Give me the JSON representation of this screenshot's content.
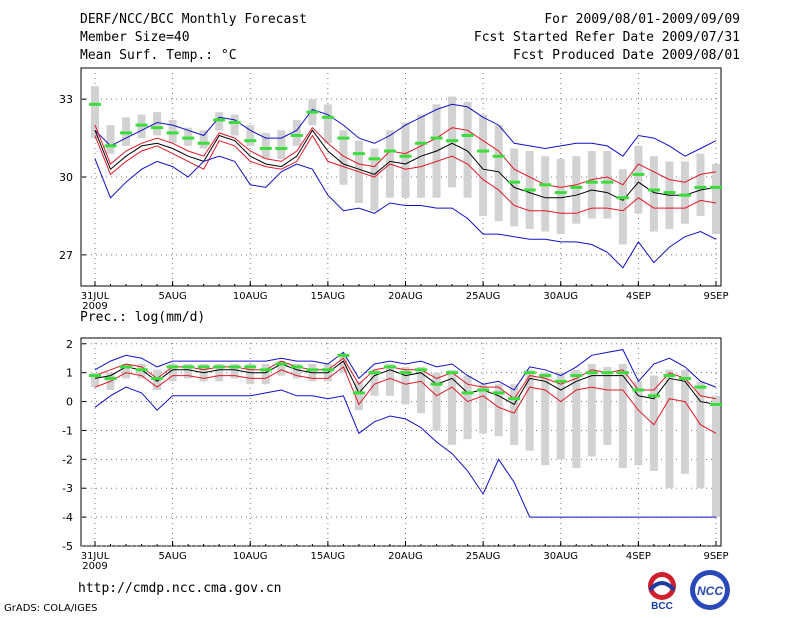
{
  "header": {
    "title": "DERF/NCC/BCC Monthly Forecast",
    "member_size": "Member Size=40",
    "variable": "Mean Surf. Temp.: °C",
    "period": "For 2009/08/01-2009/09/09",
    "started": "Fcst Started Refer Date 2009/07/31",
    "produced": "Fcst Produced Date 2009/08/01"
  },
  "footer": {
    "url": "http://cmdp.ncc.cma.gov.cn",
    "grads": "GrADS: COLA/IGES",
    "logo_bcc": "BCC",
    "logo_ncc": "NCC"
  },
  "chart_data": [
    {
      "type": "line",
      "title": "Mean Surf. Temp.: °C",
      "x_tick_labels": [
        "31JUL\n2009",
        "5AUG",
        "10AUG",
        "15AUG",
        "20AUG",
        "25AUG",
        "30AUG",
        "4SEP",
        "9SEP"
      ],
      "x_tick_days": [
        0,
        5,
        10,
        15,
        20,
        25,
        30,
        35,
        40
      ],
      "ylim": [
        25.8,
        34.2
      ],
      "yticks": [
        27,
        30,
        33
      ],
      "colors": {
        "max_min": "#1010c8",
        "spread": "#e01828",
        "mean": "#000000",
        "member_box": "#d2d2d2",
        "observed_tick": "#3cdc3c"
      },
      "series": [
        {
          "name": "max",
          "values": [
            31.8,
            31.2,
            31.5,
            31.8,
            32.1,
            32.0,
            31.8,
            31.6,
            32.3,
            32.2,
            31.8,
            31.5,
            31.5,
            31.8,
            32.6,
            32.4,
            32.0,
            31.5,
            31.3,
            31.6,
            32.0,
            32.3,
            32.6,
            32.8,
            32.7,
            32.3,
            32.0,
            31.3,
            31.2,
            31.1,
            31.2,
            31.3,
            31.3,
            31.2,
            30.8,
            31.6,
            31.5,
            31.2,
            30.8,
            31.1,
            31.4
          ]
        },
        {
          "name": "upper",
          "values": [
            32.0,
            30.5,
            31.0,
            31.3,
            31.5,
            31.3,
            31.0,
            30.8,
            31.7,
            31.5,
            31.0,
            30.7,
            30.6,
            31.0,
            31.9,
            31.3,
            30.8,
            30.5,
            30.4,
            31.0,
            30.9,
            31.2,
            31.5,
            31.9,
            31.8,
            31.4,
            31.0,
            30.3,
            30.0,
            29.7,
            29.6,
            29.7,
            29.9,
            30.0,
            29.7,
            30.5,
            30.2,
            29.9,
            29.8,
            30.1,
            30.2
          ]
        },
        {
          "name": "mean",
          "values": [
            31.8,
            30.3,
            30.8,
            31.2,
            31.3,
            31.1,
            30.8,
            30.6,
            31.6,
            31.4,
            30.8,
            30.5,
            30.4,
            30.8,
            31.8,
            31.0,
            30.5,
            30.3,
            30.1,
            30.6,
            30.5,
            30.8,
            31.0,
            31.3,
            31.0,
            30.3,
            30.2,
            29.6,
            29.4,
            29.2,
            29.2,
            29.3,
            29.5,
            29.4,
            29.1,
            29.8,
            29.4,
            29.3,
            29.3,
            29.5,
            29.6
          ]
        },
        {
          "name": "lower",
          "values": [
            31.6,
            30.1,
            30.6,
            31.0,
            31.2,
            30.9,
            30.6,
            30.3,
            31.4,
            31.2,
            30.6,
            30.4,
            30.3,
            30.6,
            31.6,
            30.6,
            30.4,
            30.2,
            30.0,
            30.5,
            30.3,
            30.4,
            30.6,
            30.8,
            30.5,
            29.9,
            29.5,
            28.9,
            28.7,
            28.7,
            28.6,
            28.6,
            28.8,
            28.8,
            28.7,
            29.2,
            28.8,
            28.8,
            28.8,
            29.1,
            29.0
          ]
        },
        {
          "name": "min",
          "values": [
            30.7,
            29.2,
            29.8,
            30.3,
            30.6,
            30.4,
            30.0,
            30.6,
            30.8,
            30.6,
            29.7,
            29.6,
            30.2,
            30.5,
            30.3,
            29.3,
            28.7,
            28.8,
            28.6,
            29.0,
            28.9,
            28.9,
            28.8,
            28.8,
            28.4,
            27.8,
            27.8,
            27.7,
            27.6,
            27.6,
            27.5,
            27.5,
            27.4,
            27.1,
            26.5,
            27.5,
            26.7,
            27.3,
            27.7,
            27.9,
            27.6
          ]
        },
        {
          "name": "observed",
          "values": [
            32.8,
            31.2,
            31.7,
            32.0,
            31.9,
            31.7,
            31.5,
            31.3,
            32.2,
            32.1,
            31.4,
            31.1,
            31.1,
            31.6,
            32.5,
            32.3,
            31.5,
            30.9,
            30.7,
            31.0,
            30.8,
            31.3,
            31.5,
            31.4,
            31.6,
            31.0,
            30.8,
            29.8,
            29.5,
            29.7,
            29.4,
            29.6,
            29.8,
            29.8,
            29.2,
            30.1,
            29.5,
            29.4,
            29.3,
            29.6,
            29.6
          ]
        }
      ],
      "member_range": {
        "low": [
          31.5,
          30.9,
          31.2,
          31.5,
          31.6,
          31.3,
          31.2,
          31.1,
          31.8,
          31.6,
          31.2,
          30.7,
          30.7,
          31.2,
          32.0,
          31.3,
          29.7,
          29.0,
          28.7,
          29.2,
          29.2,
          29.2,
          29.2,
          29.6,
          29.2,
          28.5,
          28.3,
          28.1,
          28.0,
          27.9,
          27.8,
          28.2,
          28.4,
          28.4,
          27.4,
          28.6,
          27.9,
          28.0,
          28.2,
          28.5,
          27.8
        ]
      },
      "member_range_high": [
        33.5,
        32.0,
        32.3,
        32.4,
        32.5,
        32.2,
        31.9,
        31.8,
        32.5,
        32.4,
        32.0,
        31.7,
        31.8,
        32.2,
        33.0,
        32.8,
        31.8,
        31.4,
        31.1,
        31.8,
        32.1,
        32.4,
        32.8,
        33.1,
        32.9,
        32.4,
        32.0,
        31.1,
        31.0,
        30.8,
        30.7,
        30.8,
        31.0,
        31.0,
        30.3,
        31.2,
        30.8,
        30.6,
        30.6,
        30.9,
        30.5
      ]
    },
    {
      "type": "line",
      "title": "Prec.: log(mm/d)",
      "x_tick_labels": [
        "31JUL\n2009",
        "5AUG",
        "10AUG",
        "15AUG",
        "20AUG",
        "25AUG",
        "30AUG",
        "4SEP",
        "9SEP"
      ],
      "x_tick_days": [
        0,
        5,
        10,
        15,
        20,
        25,
        30,
        35,
        40
      ],
      "ylim": [
        -5,
        2.2
      ],
      "yticks": [
        -5,
        -4,
        -3,
        -2,
        -1,
        0,
        1,
        2
      ],
      "colors": {
        "max_min": "#1010c8",
        "spread": "#e01828",
        "mean": "#000000",
        "member_box": "#d2d2d2",
        "observed_tick": "#3cdc3c"
      },
      "series": [
        {
          "name": "max",
          "values": [
            1.1,
            1.4,
            1.6,
            1.5,
            1.2,
            1.4,
            1.4,
            1.4,
            1.4,
            1.4,
            1.4,
            1.4,
            1.5,
            1.4,
            1.4,
            1.3,
            1.7,
            0.8,
            1.3,
            1.4,
            1.3,
            1.4,
            1.2,
            1.3,
            0.9,
            0.6,
            0.7,
            0.4,
            1.2,
            1.1,
            0.9,
            1.2,
            1.6,
            1.7,
            1.8,
            0.7,
            1.3,
            1.5,
            1.2,
            0.7,
            0.5
          ]
        },
        {
          "name": "upper",
          "values": [
            0.9,
            1.1,
            1.3,
            1.2,
            0.8,
            1.2,
            1.2,
            1.1,
            1.2,
            1.2,
            1.1,
            1.1,
            1.4,
            1.2,
            1.1,
            1.1,
            1.5,
            0.6,
            1.1,
            1.2,
            1.1,
            1.1,
            0.8,
            1.0,
            0.6,
            0.5,
            0.5,
            0.1,
            0.9,
            0.8,
            0.6,
            0.8,
            1.1,
            1.0,
            1.1,
            0.4,
            0.4,
            1.0,
            0.8,
            0.2,
            0.1
          ]
        },
        {
          "name": "mean",
          "values": [
            0.8,
            0.9,
            1.2,
            1.1,
            0.7,
            1.1,
            1.1,
            1.0,
            1.1,
            1.1,
            1.0,
            1.0,
            1.3,
            1.1,
            1.0,
            1.0,
            1.4,
            0.3,
            0.9,
            1.1,
            0.9,
            1.0,
            0.6,
            0.8,
            0.3,
            0.4,
            0.2,
            -0.1,
            0.8,
            0.7,
            0.4,
            0.7,
            0.9,
            0.9,
            0.9,
            0.2,
            0.1,
            0.8,
            0.7,
            0.0,
            -0.1
          ]
        },
        {
          "name": "lower",
          "values": [
            0.5,
            0.7,
            1.0,
            0.9,
            0.5,
            0.9,
            0.9,
            0.8,
            0.9,
            0.9,
            0.8,
            0.8,
            1.1,
            0.9,
            0.8,
            0.8,
            1.2,
            -0.1,
            0.6,
            0.8,
            0.6,
            0.7,
            0.2,
            0.5,
            0.0,
            0.2,
            -0.2,
            -0.4,
            0.5,
            0.4,
            0.0,
            0.4,
            0.5,
            0.4,
            0.4,
            -0.3,
            -0.8,
            0.1,
            0.0,
            -0.8,
            -1.1
          ]
        },
        {
          "name": "min",
          "values": [
            -0.2,
            0.2,
            0.5,
            0.3,
            -0.3,
            0.2,
            0.2,
            0.2,
            0.2,
            0.2,
            0.2,
            0.3,
            0.4,
            0.2,
            0.2,
            0.1,
            0.2,
            -1.1,
            -0.7,
            -0.5,
            -0.6,
            -0.9,
            -1.4,
            -1.8,
            -2.4,
            -3.2,
            -2.0,
            -2.8,
            -4.0,
            -4.0,
            -4.0,
            -4.0,
            -4.0,
            -4.0,
            -4.0,
            -4.0,
            -4.0,
            -4.0,
            -4.0,
            -4.0,
            -4.0
          ]
        },
        {
          "name": "observed",
          "values": [
            0.9,
            0.8,
            1.2,
            1.1,
            0.8,
            1.2,
            1.2,
            1.2,
            1.2,
            1.2,
            1.2,
            1.1,
            1.3,
            1.2,
            1.1,
            1.1,
            1.6,
            0.3,
            1.0,
            1.2,
            1.0,
            1.1,
            0.6,
            1.0,
            0.3,
            0.4,
            0.3,
            0.1,
            1.0,
            0.9,
            0.7,
            0.9,
            1.0,
            1.0,
            1.0,
            0.4,
            0.2,
            0.9,
            0.8,
            0.5,
            -0.1
          ]
        }
      ],
      "member_range": {
        "low": [
          0.5,
          0.4,
          0.8,
          0.8,
          0.4,
          0.7,
          0.8,
          0.7,
          0.7,
          0.8,
          0.6,
          0.6,
          0.9,
          0.8,
          0.7,
          0.7,
          1.0,
          -0.3,
          0.2,
          0.2,
          -0.1,
          -0.4,
          -1.0,
          -1.5,
          -1.3,
          -1.1,
          -1.2,
          -1.5,
          -1.7,
          -2.2,
          -2.0,
          -2.3,
          -1.9,
          -1.5,
          -2.3,
          -2.2,
          -2.4,
          -3.0,
          -2.5,
          -3.0,
          -4.0
        ]
      },
      "member_range_high": [
        1.0,
        1.0,
        1.3,
        1.3,
        1.1,
        1.3,
        1.3,
        1.3,
        1.3,
        1.3,
        1.3,
        1.3,
        1.4,
        1.3,
        1.3,
        1.3,
        1.6,
        0.7,
        1.1,
        1.3,
        1.2,
        1.2,
        1.0,
        1.1,
        0.9,
        0.6,
        0.6,
        0.6,
        1.1,
        1.0,
        1.0,
        1.1,
        1.3,
        1.2,
        1.3,
        0.7,
        0.9,
        1.1,
        1.1,
        0.7,
        0.2
      ]
    }
  ]
}
